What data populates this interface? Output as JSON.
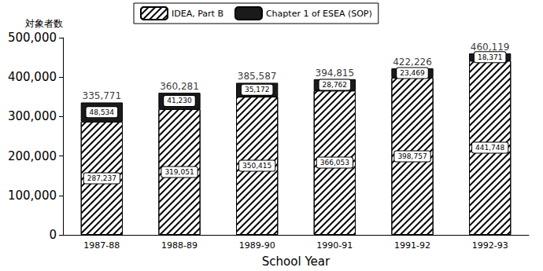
{
  "chart_data": {
    "type": "bar",
    "stacked": true,
    "y_label": "対象者数",
    "x_label": "School Year",
    "categories": [
      "1987-88",
      "1988-89",
      "1989-90",
      "1990-91",
      "1991-92",
      "1992-93"
    ],
    "series": [
      {
        "name": "IDEA, Part B",
        "color": "#ffffff",
        "values": [
          287237,
          319051,
          350415,
          366053,
          398757,
          441748
        ],
        "value_labels": [
          "287,237",
          "319,051",
          "350,415",
          "366,053",
          "398,757",
          "441,748"
        ]
      },
      {
        "name": "Chapter 1 of ESEA (SOP)",
        "color": "#1a1a1a",
        "values": [
          48534,
          41230,
          35172,
          28762,
          23469,
          18371
        ],
        "value_labels": [
          "48,534",
          "41,230",
          "35,172",
          "28,762",
          "23,469",
          "18,371"
        ]
      }
    ],
    "totals": {
      "values": [
        335771,
        360281,
        385587,
        394815,
        422226,
        460119
      ],
      "value_labels": [
        "335,771",
        "360,281",
        "385,587",
        "394,815",
        "422,226",
        "460,119"
      ]
    },
    "ylim": [
      0,
      500000
    ],
    "yticks": [
      0,
      {
        "value": 100000,
        "label": "100,000"
      },
      {
        "value": 200000,
        "label": "200,000"
      },
      {
        "value": 300000,
        "label": "300,000"
      },
      {
        "value": 400000,
        "label": "400,000"
      },
      {
        "value": 500000,
        "label": "500,000"
      }
    ],
    "grid": false,
    "legend": "top",
    "data_labels": true
  }
}
